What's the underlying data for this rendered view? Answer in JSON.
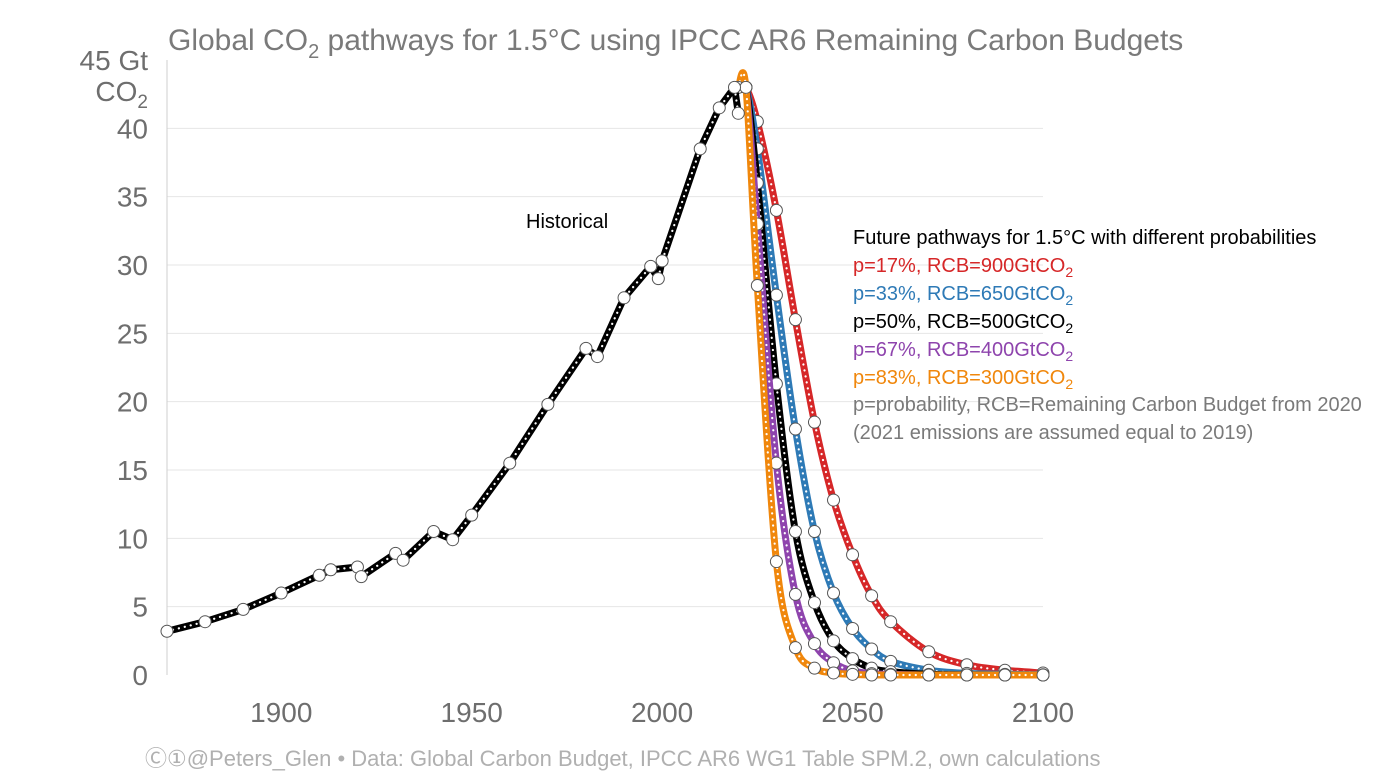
{
  "chart_data": {
    "type": "line",
    "title_main": "Global CO",
    "title_sub": "2",
    "title_rest": " pathways for 1.5°C using IPCC AR6 Remaining Carbon Budgets",
    "ylabel_line1": "45 Gt",
    "ylabel_line2_main": "CO",
    "ylabel_line2_sub": "2",
    "xlim": [
      1870,
      2100
    ],
    "ylim": [
      0,
      45
    ],
    "yticks": [
      0,
      5,
      10,
      15,
      20,
      25,
      30,
      35,
      40
    ],
    "xticks": [
      1900,
      1950,
      2000,
      2050,
      2100
    ],
    "grid": "horizontal",
    "historical_label": "Historical",
    "legend_title": "Future pathways for 1.5°C with different probabilities",
    "note_line1": "p=probability, RCB=Remaining Carbon Budget from 2020",
    "note_line2": "(2021 emissions are assumed equal to 2019)",
    "footer": "Ⓒ①@Peters_Glen  •  Data: Global Carbon Budget, IPCC AR6 WG1 Table SPM.2, own calculations",
    "historical": {
      "color": "#000000",
      "x": [
        1870,
        1880,
        1890,
        1900,
        1910,
        1913,
        1920,
        1921,
        1930,
        1932,
        1940,
        1945,
        1950,
        1960,
        1970,
        1980,
        1983,
        1990,
        1997,
        1999,
        2000,
        2010,
        2015,
        2019,
        2020
      ],
      "y": [
        3.2,
        3.9,
        4.8,
        6.0,
        7.3,
        7.7,
        7.9,
        7.2,
        8.9,
        8.4,
        10.5,
        9.9,
        11.7,
        15.5,
        19.8,
        23.9,
        23.3,
        27.6,
        29.9,
        29.0,
        30.3,
        38.5,
        41.5,
        43.0,
        41.1
      ]
    },
    "series": [
      {
        "name": "p=17%, RCB=900GtCO",
        "name_sub": "2",
        "color": "#d62728",
        "x": [
          2020,
          2022,
          2025,
          2030,
          2035,
          2040,
          2045,
          2050,
          2055,
          2060,
          2070,
          2080,
          2090,
          2100
        ],
        "y": [
          43.0,
          43.0,
          40.5,
          34.0,
          26.0,
          18.5,
          12.8,
          8.8,
          5.8,
          3.9,
          1.7,
          0.75,
          0.35,
          0.15
        ]
      },
      {
        "name": "p=33%, RCB=650GtCO",
        "name_sub": "2",
        "color": "#2e7ab6",
        "x": [
          2020,
          2022,
          2025,
          2030,
          2035,
          2040,
          2045,
          2050,
          2055,
          2060,
          2070,
          2080,
          2090,
          2100
        ],
        "y": [
          43.0,
          43.0,
          38.5,
          27.8,
          18.0,
          10.5,
          6.0,
          3.4,
          1.9,
          1.0,
          0.35,
          0.12,
          0.05,
          0.02
        ]
      },
      {
        "name": "p=50%, RCB=500GtCO",
        "name_sub": "2",
        "color": "#000000",
        "x": [
          2020,
          2022,
          2025,
          2030,
          2035,
          2040,
          2045,
          2050,
          2055,
          2060,
          2070,
          2080,
          2090,
          2100
        ],
        "y": [
          43.0,
          43.0,
          36.0,
          21.3,
          10.5,
          5.3,
          2.5,
          1.2,
          0.5,
          0.25,
          0.05,
          0.01,
          0.0,
          0.0
        ]
      },
      {
        "name": "p=67%, RCB=400GtCO",
        "name_sub": "2",
        "color": "#8e44ad",
        "x": [
          2020,
          2022,
          2025,
          2030,
          2035,
          2040,
          2045,
          2050,
          2055,
          2060,
          2070,
          2080,
          2090,
          2100
        ],
        "y": [
          43.0,
          43.0,
          33.0,
          15.5,
          5.9,
          2.3,
          0.9,
          0.3,
          0.1,
          0.05,
          0.0,
          0.0,
          0.0,
          0.0
        ]
      },
      {
        "name": "p=83%, RCB=300GtCO",
        "name_sub": "2",
        "color": "#f0870c",
        "x": [
          2020,
          2022,
          2025,
          2030,
          2035,
          2040,
          2045,
          2050,
          2055,
          2060,
          2070,
          2080,
          2090,
          2100
        ],
        "y": [
          43.0,
          43.0,
          28.5,
          8.3,
          2.0,
          0.5,
          0.15,
          0.05,
          0.0,
          0.0,
          0.0,
          0.0,
          0.0,
          0.0
        ]
      }
    ],
    "legend_placement": "right"
  }
}
